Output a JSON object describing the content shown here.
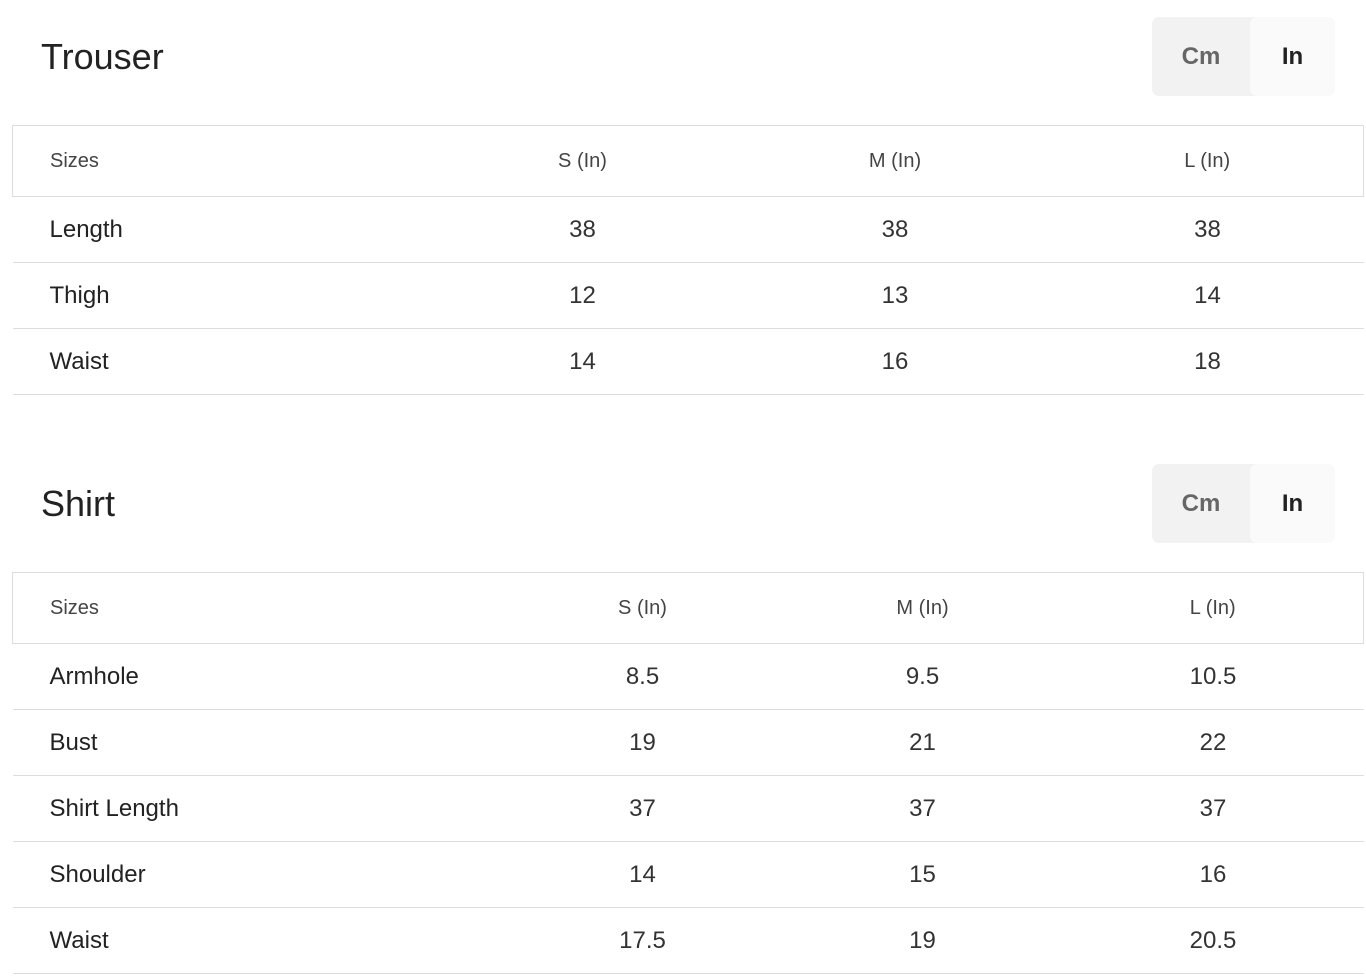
{
  "trouser": {
    "title": "Trouser",
    "toggle": {
      "cm": "Cm",
      "in": "In",
      "selected": "In"
    },
    "headers": [
      "Sizes",
      "S (In)",
      "M (In)",
      "L (In)"
    ],
    "rows": [
      {
        "label": "Length",
        "values": [
          "38",
          "38",
          "38"
        ]
      },
      {
        "label": "Thigh",
        "values": [
          "12",
          "13",
          "14"
        ]
      },
      {
        "label": "Waist",
        "values": [
          "14",
          "16",
          "18"
        ]
      }
    ]
  },
  "shirt": {
    "title": "Shirt",
    "toggle": {
      "cm": "Cm",
      "in": "In",
      "selected": "In"
    },
    "headers": [
      "Sizes",
      "S (In)",
      "M (In)",
      "L (In)"
    ],
    "rows": [
      {
        "label": "Armhole",
        "values": [
          "8.5",
          "9.5",
          "10.5"
        ]
      },
      {
        "label": "Bust",
        "values": [
          "19",
          "21",
          "22"
        ]
      },
      {
        "label": "Shirt Length",
        "values": [
          "37",
          "37",
          "37"
        ]
      },
      {
        "label": "Shoulder",
        "values": [
          "14",
          "15",
          "16"
        ]
      },
      {
        "label": "Waist",
        "values": [
          "17.5",
          "19",
          "20.5"
        ]
      }
    ]
  }
}
